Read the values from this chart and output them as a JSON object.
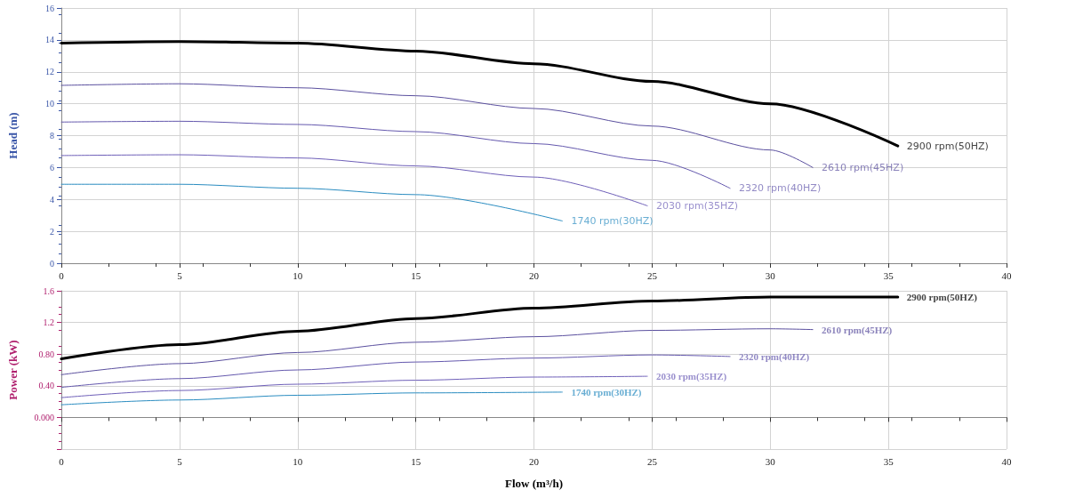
{
  "chart_data": [
    {
      "type": "line",
      "ylabel": "Head (m)",
      "xlim": [
        0,
        40
      ],
      "xticks": [
        0,
        5,
        10,
        15,
        20,
        25,
        30,
        35,
        40
      ],
      "ylim": [
        0,
        16
      ],
      "yticks": [
        0,
        2,
        4,
        6,
        8,
        10,
        12,
        14,
        16
      ],
      "grid": true,
      "legend": false,
      "marker": "none",
      "line_style": "solid",
      "series": [
        {
          "name": "2900 rpm(50HZ)",
          "color": "#000000",
          "x": [
            0,
            5,
            10,
            15,
            20,
            25,
            30,
            35.4
          ],
          "values": [
            13.8,
            13.9,
            13.8,
            13.3,
            12.5,
            11.4,
            10.0,
            7.35
          ]
        },
        {
          "name": "2610 rpm(45HZ)",
          "color": "#5a4f9e",
          "x": [
            0,
            5,
            10,
            15,
            20,
            25,
            30,
            31.8
          ],
          "values": [
            11.15,
            11.25,
            11.0,
            10.5,
            9.7,
            8.6,
            7.1,
            6.0
          ]
        },
        {
          "name": "2320 rpm(40HZ)",
          "color": "#6458ad",
          "x": [
            0,
            5,
            10,
            15,
            20,
            25,
            28.3
          ],
          "values": [
            8.85,
            8.9,
            8.7,
            8.25,
            7.5,
            6.45,
            4.7
          ]
        },
        {
          "name": "2030 rpm(35HZ)",
          "color": "#6e5fb8",
          "x": [
            0,
            5,
            10,
            15,
            20,
            24.8
          ],
          "values": [
            6.75,
            6.8,
            6.6,
            6.1,
            5.4,
            3.6
          ]
        },
        {
          "name": "1740 rpm(30HZ)",
          "color": "#2a8cc0",
          "x": [
            0,
            5,
            10,
            15,
            21.2
          ],
          "values": [
            4.95,
            4.95,
            4.7,
            4.3,
            2.65
          ]
        }
      ]
    },
    {
      "type": "line",
      "xlabel": "Flow (m³/h)",
      "ylabel": "Power (kW)",
      "xlim": [
        0,
        40
      ],
      "xticks": [
        0,
        5,
        10,
        15,
        20,
        25,
        30,
        35,
        40
      ],
      "ylim": [
        -0.4,
        1.6
      ],
      "yticks": [
        {
          "value": -0.4,
          "label": null
        },
        {
          "value": 0,
          "label": "0.000"
        },
        {
          "value": 0.4,
          "label": "0.40"
        },
        {
          "value": 0.8,
          "label": "0.80"
        },
        {
          "value": 1.2,
          "label": "1.2"
        },
        {
          "value": 1.6,
          "label": "1.6"
        }
      ],
      "grid": true,
      "legend": false,
      "marker": "none",
      "line_style": "solid",
      "series": [
        {
          "name": "2900 rpm(50HZ)",
          "color": "#000000",
          "x": [
            0,
            5,
            10,
            15,
            20,
            25,
            30,
            35.4
          ],
          "values": [
            0.74,
            0.92,
            1.09,
            1.25,
            1.38,
            1.47,
            1.52,
            1.52
          ]
        },
        {
          "name": "2610 rpm(45HZ)",
          "color": "#5a4f9e",
          "x": [
            0,
            5,
            10,
            15,
            20,
            25,
            30,
            31.8
          ],
          "values": [
            0.54,
            0.68,
            0.82,
            0.95,
            1.02,
            1.1,
            1.12,
            1.11
          ]
        },
        {
          "name": "2320 rpm(40HZ)",
          "color": "#6458ad",
          "x": [
            0,
            5,
            10,
            15,
            20,
            25,
            28.3
          ],
          "values": [
            0.38,
            0.49,
            0.6,
            0.7,
            0.75,
            0.79,
            0.77
          ]
        },
        {
          "name": "2030 rpm(35HZ)",
          "color": "#6e5fb8",
          "x": [
            0,
            5,
            10,
            15,
            20,
            24.8
          ],
          "values": [
            0.25,
            0.34,
            0.42,
            0.47,
            0.51,
            0.52
          ]
        },
        {
          "name": "1740 rpm(30HZ)",
          "color": "#2a8cc0",
          "x": [
            0,
            5,
            10,
            15,
            21.2
          ],
          "values": [
            0.16,
            0.22,
            0.28,
            0.31,
            0.32
          ]
        }
      ]
    }
  ]
}
